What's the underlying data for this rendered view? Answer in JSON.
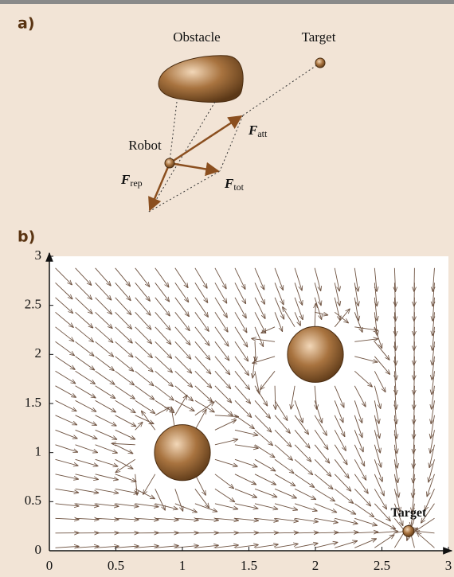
{
  "panel_a": {
    "label": "a)",
    "obstacle": "Obstacle",
    "target": "Target",
    "robot": "Robot",
    "forces": [
      {
        "symbol": "F",
        "subscript": "att"
      },
      {
        "symbol": "F",
        "subscript": "rep"
      },
      {
        "symbol": "F",
        "subscript": "tot"
      }
    ]
  },
  "panel_b": {
    "label": "b)",
    "xlim": [
      0,
      3
    ],
    "ylim": [
      0,
      3
    ],
    "xticks": [
      0,
      0.5,
      1,
      1.5,
      2,
      2.5,
      3
    ],
    "yticks": [
      0,
      0.5,
      1,
      1.5,
      2,
      2.5,
      3
    ],
    "obstacles": [
      {
        "x": 1,
        "y": 1,
        "radius": 0.21
      },
      {
        "x": 2,
        "y": 2,
        "radius": 0.21
      }
    ],
    "target": {
      "label": "Target",
      "x": 2.7,
      "y": 0.2
    }
  }
}
